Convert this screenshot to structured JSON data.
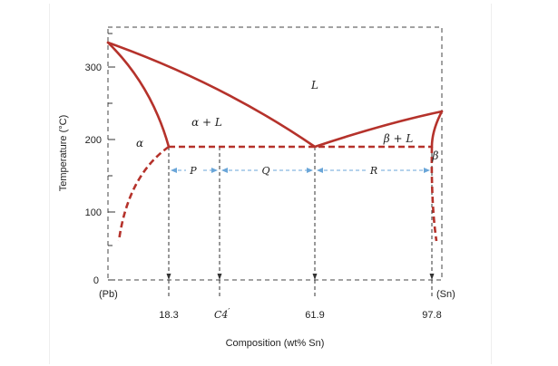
{
  "diagram": {
    "ylabel": "Temperature (°C)",
    "xlabel": "Composition (wt% Sn)",
    "left_end_label": "(Pb)",
    "right_end_label": "(Sn)",
    "y_ticks": [
      "0",
      "100",
      "200",
      "300"
    ],
    "x_markers": [
      "18.3",
      "C4",
      "′",
      "61.9",
      "97.8"
    ],
    "regions": {
      "liquid": "L",
      "alpha": "α",
      "alpha_plus_liquid": "α + L",
      "beta_plus_liquid": "β + L",
      "beta": "β"
    },
    "spans": [
      "P",
      "Q",
      "R"
    ],
    "colors": {
      "phase_line": "#b5322b",
      "span_arrow": "#6aa6d8",
      "guide": "#333333"
    }
  }
}
